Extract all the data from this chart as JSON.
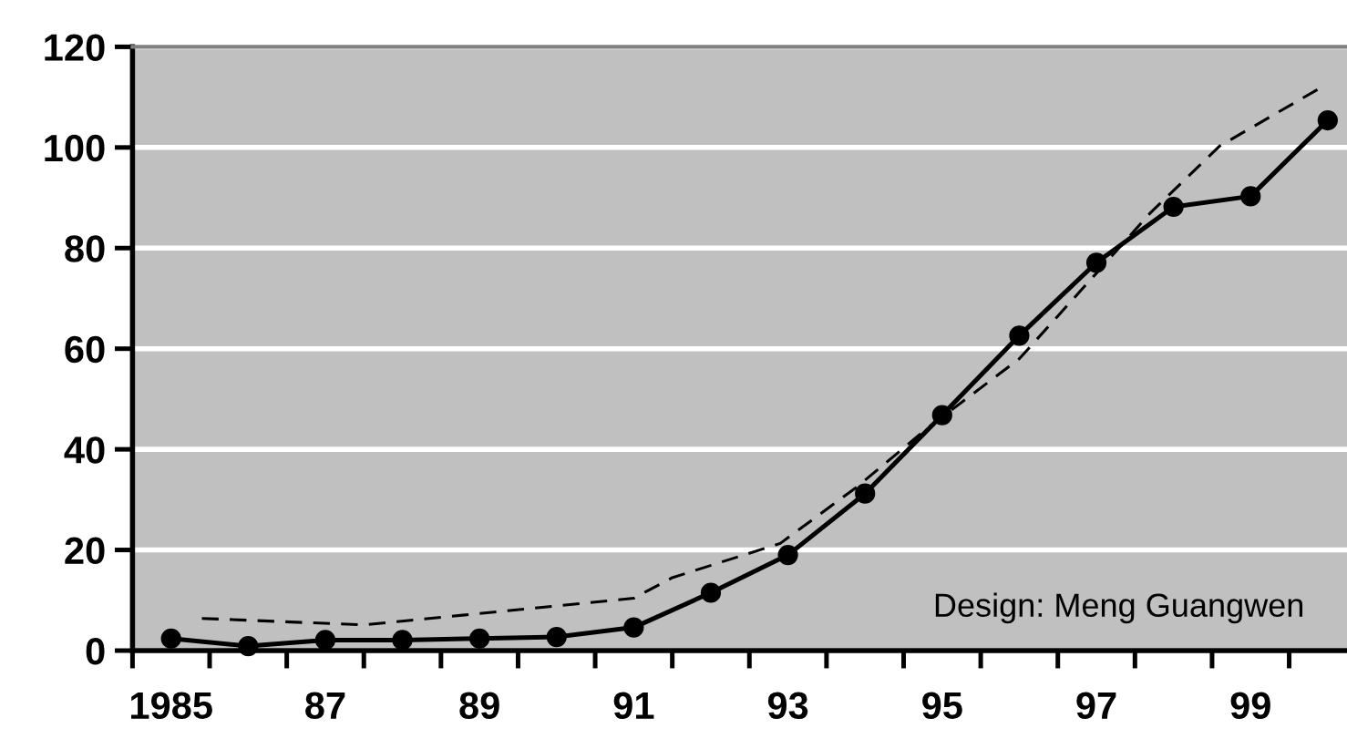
{
  "chart_data": {
    "type": "line",
    "x": [
      1985,
      1986,
      1987,
      1988,
      1989,
      1990,
      1991,
      1992,
      1993,
      1994,
      1995,
      1996,
      1997,
      1998,
      1999,
      2000
    ],
    "series": [
      {
        "color": "#000000",
        "marker": "circle",
        "line_style": "solid",
        "values": [
          2.4,
          0.9,
          2.1,
          2.1,
          2.4,
          2.7,
          4.6,
          11.5,
          19.0,
          31.2,
          46.8,
          62.6,
          77.1,
          88.2,
          90.3,
          105.4
        ]
      },
      {
        "color": "#000000",
        "marker": "none",
        "line_style": "dashed",
        "x": [
          1985.4,
          1987.5,
          1991.0,
          1991.5,
          1992.9,
          1993.9,
          1994.8,
          1996.0,
          1997.0,
          1997.7,
          1998.6,
          1999.9
        ],
        "values": [
          6.4,
          5.1,
          10.4,
          14.5,
          21.3,
          32.6,
          44.1,
          58.0,
          75.0,
          87.0,
          100.3,
          111.8
        ]
      }
    ],
    "xlim": [
      1984.5,
      2000.25
    ],
    "xticks": [
      {
        "value": 1984.5,
        "label": null
      },
      {
        "value": 1985,
        "label": "1985"
      },
      {
        "value": 1985.5,
        "label": null
      },
      {
        "value": 1986.5,
        "label": null
      },
      {
        "value": 1987,
        "label": "87"
      },
      {
        "value": 1987.5,
        "label": null
      },
      {
        "value": 1988.5,
        "label": null
      },
      {
        "value": 1989,
        "label": "89"
      },
      {
        "value": 1989.5,
        "label": null
      },
      {
        "value": 1990.5,
        "label": null
      },
      {
        "value": 1991,
        "label": "91"
      },
      {
        "value": 1991.5,
        "label": null
      },
      {
        "value": 1992.5,
        "label": null
      },
      {
        "value": 1993,
        "label": "93"
      },
      {
        "value": 1993.5,
        "label": null
      },
      {
        "value": 1994.5,
        "label": null
      },
      {
        "value": 1995,
        "label": "95"
      },
      {
        "value": 1995.5,
        "label": null
      },
      {
        "value": 1996.5,
        "label": null
      },
      {
        "value": 1997,
        "label": "97"
      },
      {
        "value": 1997.5,
        "label": null
      },
      {
        "value": 1998.5,
        "label": null
      },
      {
        "value": 1999,
        "label": "99"
      },
      {
        "value": 1999.5,
        "label": null
      }
    ],
    "ylim": [
      0,
      120
    ],
    "yticks": [
      0,
      20,
      40,
      60,
      80,
      100,
      120
    ],
    "grid": "y",
    "legend": false,
    "annotations": [
      "Design: Meng Guangwen"
    ]
  }
}
